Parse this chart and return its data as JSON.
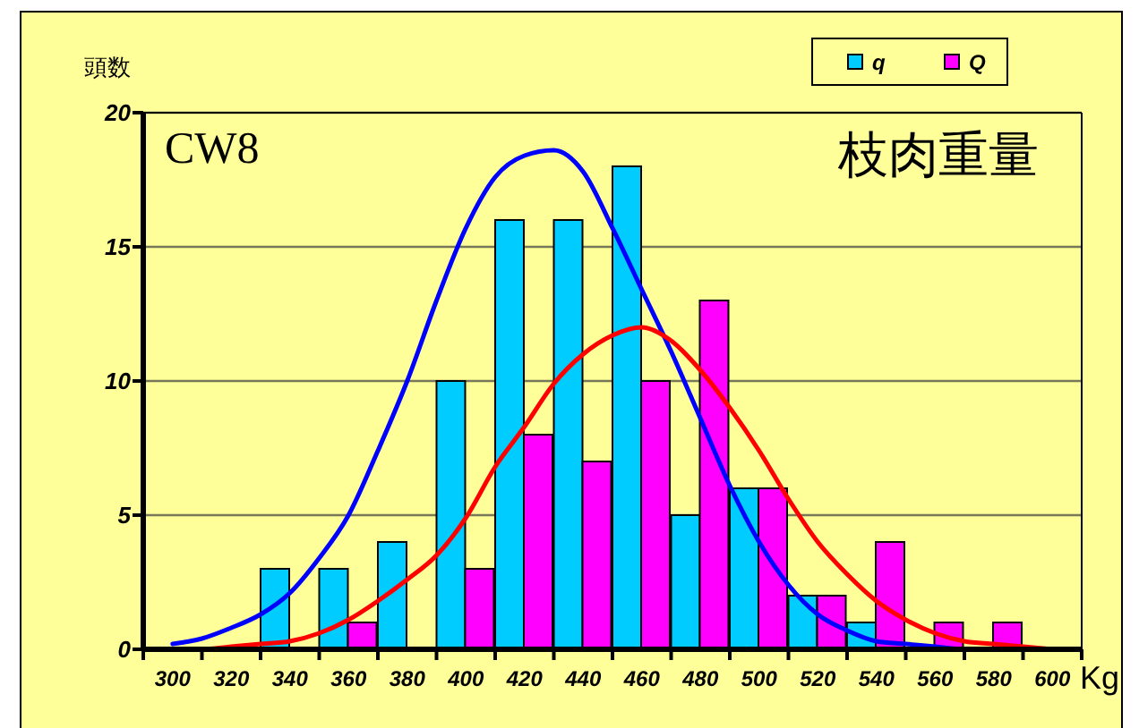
{
  "chart_data": {
    "type": "bar",
    "title": "枝肉重量",
    "annotations": [
      "CW8"
    ],
    "xlabel": "Kg",
    "ylabel": "頭数",
    "x": [
      300,
      320,
      340,
      360,
      380,
      400,
      420,
      440,
      460,
      480,
      500,
      520,
      540,
      560,
      580,
      600
    ],
    "series": [
      {
        "name": "q",
        "color": "#00ccff",
        "values": [
          0,
          0,
          3,
          3,
          4,
          10,
          16,
          16,
          18,
          5,
          6,
          2,
          1,
          0,
          0,
          0
        ]
      },
      {
        "name": "Q",
        "color": "#ff00ff",
        "values": [
          0,
          0,
          0,
          1,
          0,
          3,
          8,
          7,
          10,
          13,
          6,
          2,
          4,
          1,
          1,
          0
        ]
      },
      {
        "type": "line",
        "color": "#0000ff",
        "x": [
          300,
          310,
          320,
          330,
          340,
          350,
          360,
          370,
          380,
          390,
          400,
          410,
          420,
          430,
          440,
          450,
          460,
          470,
          480,
          490,
          500,
          510,
          520,
          530,
          540,
          550,
          560,
          570,
          580
        ],
        "values": [
          0.2,
          0.4,
          0.8,
          1.3,
          2.1,
          3.4,
          5.0,
          7.4,
          10.0,
          13.0,
          15.7,
          17.6,
          18.4,
          18.6,
          17.8,
          15.7,
          13.4,
          11.1,
          8.6,
          6.1,
          4.0,
          2.4,
          1.3,
          0.7,
          0.3,
          0.2,
          0.1,
          0,
          0
        ]
      },
      {
        "type": "line",
        "color": "#ff0000",
        "x": [
          300,
          310,
          320,
          330,
          340,
          350,
          360,
          370,
          380,
          390,
          400,
          410,
          420,
          430,
          440,
          450,
          460,
          470,
          480,
          490,
          500,
          510,
          520,
          530,
          540,
          550,
          560,
          570,
          580,
          590,
          600
        ],
        "values": [
          0,
          0,
          0.1,
          0.2,
          0.3,
          0.6,
          1.1,
          1.8,
          2.6,
          3.5,
          4.9,
          6.8,
          8.3,
          9.9,
          11.0,
          11.7,
          12.0,
          11.5,
          10.4,
          9.0,
          7.4,
          5.6,
          4.0,
          2.8,
          1.8,
          1.1,
          0.6,
          0.3,
          0.2,
          0.1,
          0
        ]
      }
    ],
    "xlim": [
      290,
      610
    ],
    "xticks": [
      {
        "value": 290,
        "label": null
      },
      300,
      {
        "value": 310,
        "label": null
      },
      320,
      {
        "value": 330,
        "label": null
      },
      340,
      {
        "value": 350,
        "label": null
      },
      360,
      {
        "value": 370,
        "label": null
      },
      380,
      {
        "value": 390,
        "label": null
      },
      400,
      {
        "value": 410,
        "label": null
      },
      420,
      {
        "value": 430,
        "label": null
      },
      440,
      {
        "value": 450,
        "label": null
      },
      460,
      {
        "value": 470,
        "label": null
      },
      480,
      {
        "value": 490,
        "label": null
      },
      500,
      {
        "value": 510,
        "label": null
      },
      520,
      {
        "value": 530,
        "label": null
      },
      540,
      {
        "value": 550,
        "label": null
      },
      560,
      {
        "value": 570,
        "label": null
      },
      580,
      {
        "value": 590,
        "label": null
      },
      600,
      {
        "value": 610,
        "label": null
      }
    ],
    "ylim": [
      0,
      20
    ],
    "yticks": [
      0,
      5,
      10,
      15,
      20
    ],
    "grid": "y",
    "legend": "top right"
  }
}
